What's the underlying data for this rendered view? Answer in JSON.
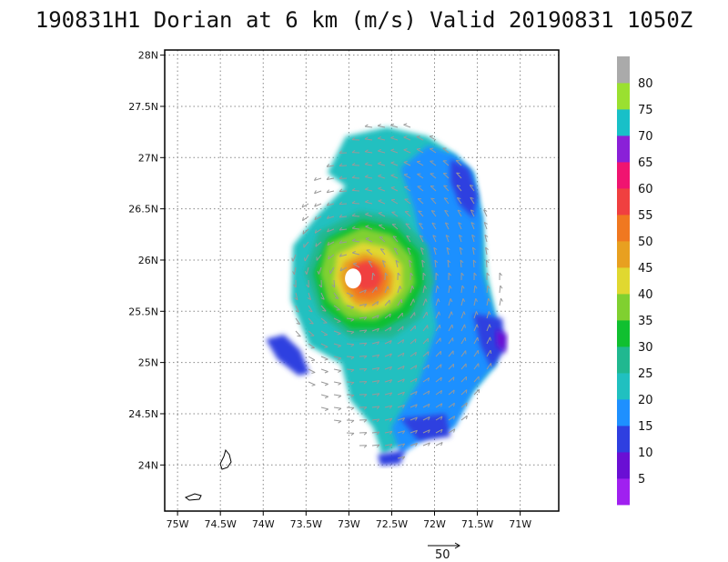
{
  "chart_data": {
    "type": "heatmap",
    "title": "190831H1 Dorian at 6 km (m/s) Valid 20190831 1050Z",
    "xlabel": "",
    "ylabel": "",
    "xlim": [
      -75.15,
      -70.55
    ],
    "ylim": [
      23.55,
      28.05
    ],
    "grid": true,
    "x_ticks": [
      {
        "value": -75.0,
        "label": "75W"
      },
      {
        "value": -74.5,
        "label": "74.5W"
      },
      {
        "value": -74.0,
        "label": "74W"
      },
      {
        "value": -73.5,
        "label": "73.5W"
      },
      {
        "value": -73.0,
        "label": "73W"
      },
      {
        "value": -72.5,
        "label": "72.5W"
      },
      {
        "value": -72.0,
        "label": "72W"
      },
      {
        "value": -71.5,
        "label": "71.5W"
      },
      {
        "value": -71.0,
        "label": "71W"
      }
    ],
    "y_ticks": [
      {
        "value": 24.0,
        "label": "24N"
      },
      {
        "value": 24.5,
        "label": "24.5N"
      },
      {
        "value": 25.0,
        "label": "25N"
      },
      {
        "value": 25.5,
        "label": "25.5N"
      },
      {
        "value": 26.0,
        "label": "26N"
      },
      {
        "value": 26.5,
        "label": "26.5N"
      },
      {
        "value": 27.0,
        "label": "27N"
      },
      {
        "value": 27.5,
        "label": "27.5N"
      },
      {
        "value": 28.0,
        "label": "28N"
      }
    ],
    "storm_center": {
      "lon": -72.95,
      "lat": 25.82
    },
    "colorbar": {
      "levels": [
        5,
        10,
        15,
        20,
        25,
        30,
        35,
        40,
        45,
        50,
        55,
        60,
        65,
        70,
        75,
        80
      ],
      "colors": [
        "#a020f0",
        "#6a0fd4",
        "#2f3fe0",
        "#1e90ff",
        "#20c0c0",
        "#20b890",
        "#10c030",
        "#80d030",
        "#e0d830",
        "#e8a020",
        "#f07820",
        "#f04040",
        "#f01470",
        "#8a20d8",
        "#18c0c8",
        "#9ae030",
        "#aaaaaa"
      ]
    },
    "reference_vector": {
      "label": "50",
      "speed": 50
    }
  }
}
